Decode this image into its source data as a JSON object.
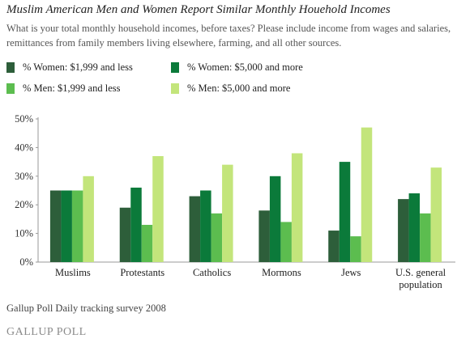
{
  "title": "Muslim American Men and Women Report Similar Monthly Houehold Incomes",
  "subtitle": "What is your total monthly household incomes, before taxes? Please include income from wages and salaries, remittances from family members living elsewhere, farming, and all other sources.",
  "source": "Gallup Poll Daily tracking survey 2008",
  "logo_text": "GALLUP POLL",
  "chart_data": {
    "type": "bar",
    "title": "Muslim American Men and Women Report Similar Monthly Houehold Incomes",
    "xlabel": "",
    "ylabel": "",
    "ylim": [
      0,
      50
    ],
    "yticks": [
      "0%",
      "10%",
      "20%",
      "30%",
      "40%",
      "50%"
    ],
    "ytick_values": [
      0,
      10,
      20,
      30,
      40,
      50
    ],
    "grid": false,
    "legend_position": "top",
    "categories": [
      "Muslims",
      "Protestants",
      "Catholics",
      "Mormons",
      "Jews",
      "U.S. general population"
    ],
    "category_lines": [
      [
        "Muslims"
      ],
      [
        "Protestants"
      ],
      [
        "Catholics"
      ],
      [
        "Mormons"
      ],
      [
        "Jews"
      ],
      [
        "U.S. general",
        "population"
      ]
    ],
    "series": [
      {
        "name": "% Women: $1,999 and less",
        "color": "#2d5e3a",
        "values": [
          25,
          19,
          23,
          18,
          11,
          22
        ]
      },
      {
        "name": "% Women: $5,000 and more",
        "color": "#0b7a3a",
        "values": [
          25,
          26,
          25,
          30,
          35,
          24
        ]
      },
      {
        "name": "% Men: $1,999 and less",
        "color": "#5cbd4f",
        "values": [
          25,
          13,
          17,
          14,
          9,
          17
        ]
      },
      {
        "name": "% Men: $5,000 and more",
        "color": "#c3e57b",
        "values": [
          30,
          37,
          34,
          38,
          47,
          33
        ]
      }
    ]
  }
}
